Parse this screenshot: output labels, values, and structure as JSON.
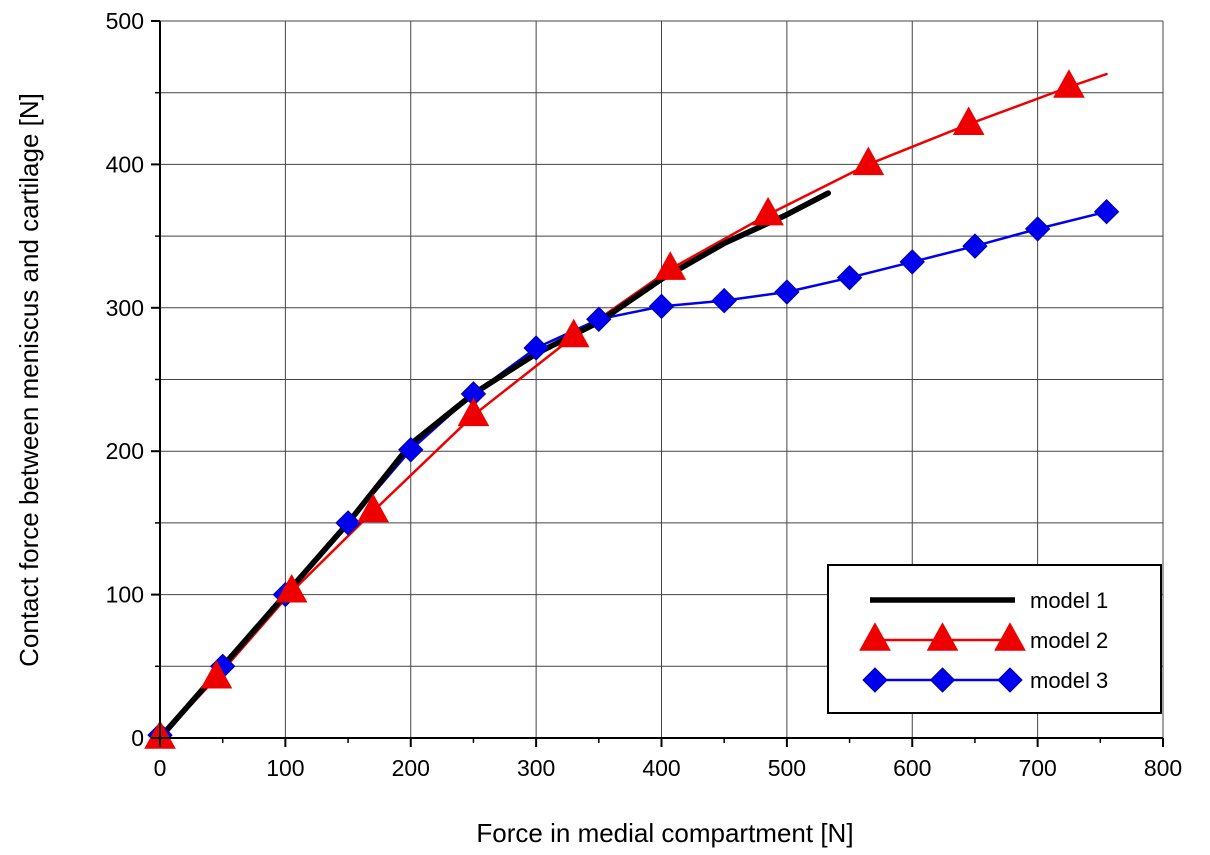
{
  "chart_data": {
    "type": "line",
    "xlabel": "Force in medial compartment [N]",
    "ylabel": "Contact force between meniscus and cartilage [N]",
    "xlim": [
      0,
      800
    ],
    "ylim": [
      0,
      500
    ],
    "x_ticks": [
      0,
      100,
      200,
      300,
      400,
      500,
      600,
      700,
      800
    ],
    "y_ticks": [
      0,
      100,
      200,
      300,
      400,
      500
    ],
    "x_tick_labels": [
      "0",
      "100",
      "200",
      "300",
      "400",
      "500",
      "600",
      "700",
      "800"
    ],
    "y_tick_labels": [
      "0",
      "100",
      "200",
      "300",
      "400",
      "500"
    ],
    "grid": true,
    "legend_position": "bottom-right",
    "series": [
      {
        "name": "model 1",
        "color": "#000000",
        "marker": "none",
        "line": [
          [
            0,
            0
          ],
          [
            50,
            50
          ],
          [
            100,
            100
          ],
          [
            150,
            150
          ],
          [
            200,
            205
          ],
          [
            250,
            240
          ],
          [
            300,
            268
          ],
          [
            350,
            290
          ],
          [
            400,
            320
          ],
          [
            450,
            345
          ],
          [
            500,
            365
          ],
          [
            533,
            380
          ]
        ],
        "points": []
      },
      {
        "name": "model 2",
        "color": "#ee0000",
        "marker": "triangle",
        "line": [
          [
            0,
            0
          ],
          [
            45,
            42
          ],
          [
            105,
            102
          ],
          [
            170,
            158
          ],
          [
            250,
            225
          ],
          [
            330,
            280
          ],
          [
            407,
            327
          ],
          [
            485,
            365
          ],
          [
            565,
            400
          ],
          [
            645,
            428
          ],
          [
            725,
            454
          ],
          [
            755,
            463
          ]
        ],
        "points": [
          [
            0,
            0
          ],
          [
            45,
            42
          ],
          [
            105,
            102
          ],
          [
            170,
            158
          ],
          [
            250,
            225
          ],
          [
            330,
            280
          ],
          [
            407,
            327
          ],
          [
            485,
            365
          ],
          [
            565,
            400
          ],
          [
            645,
            428
          ],
          [
            725,
            454
          ]
        ]
      },
      {
        "name": "model 3",
        "color": "#0000ee",
        "marker": "diamond",
        "line": [
          [
            0,
            2
          ],
          [
            50,
            50
          ],
          [
            100,
            100
          ],
          [
            150,
            150
          ],
          [
            200,
            201
          ],
          [
            250,
            240
          ],
          [
            300,
            272
          ],
          [
            350,
            292
          ],
          [
            400,
            301
          ],
          [
            450,
            305
          ],
          [
            500,
            311
          ],
          [
            550,
            321
          ],
          [
            600,
            332
          ],
          [
            650,
            343
          ],
          [
            700,
            355
          ],
          [
            755,
            367
          ]
        ],
        "points": [
          [
            0,
            2
          ],
          [
            50,
            50
          ],
          [
            100,
            100
          ],
          [
            150,
            150
          ],
          [
            200,
            201
          ],
          [
            250,
            240
          ],
          [
            300,
            272
          ],
          [
            350,
            292
          ],
          [
            400,
            301
          ],
          [
            450,
            305
          ],
          [
            500,
            311
          ],
          [
            550,
            321
          ],
          [
            600,
            332
          ],
          [
            650,
            343
          ],
          [
            700,
            355
          ],
          [
            755,
            367
          ]
        ]
      }
    ]
  }
}
